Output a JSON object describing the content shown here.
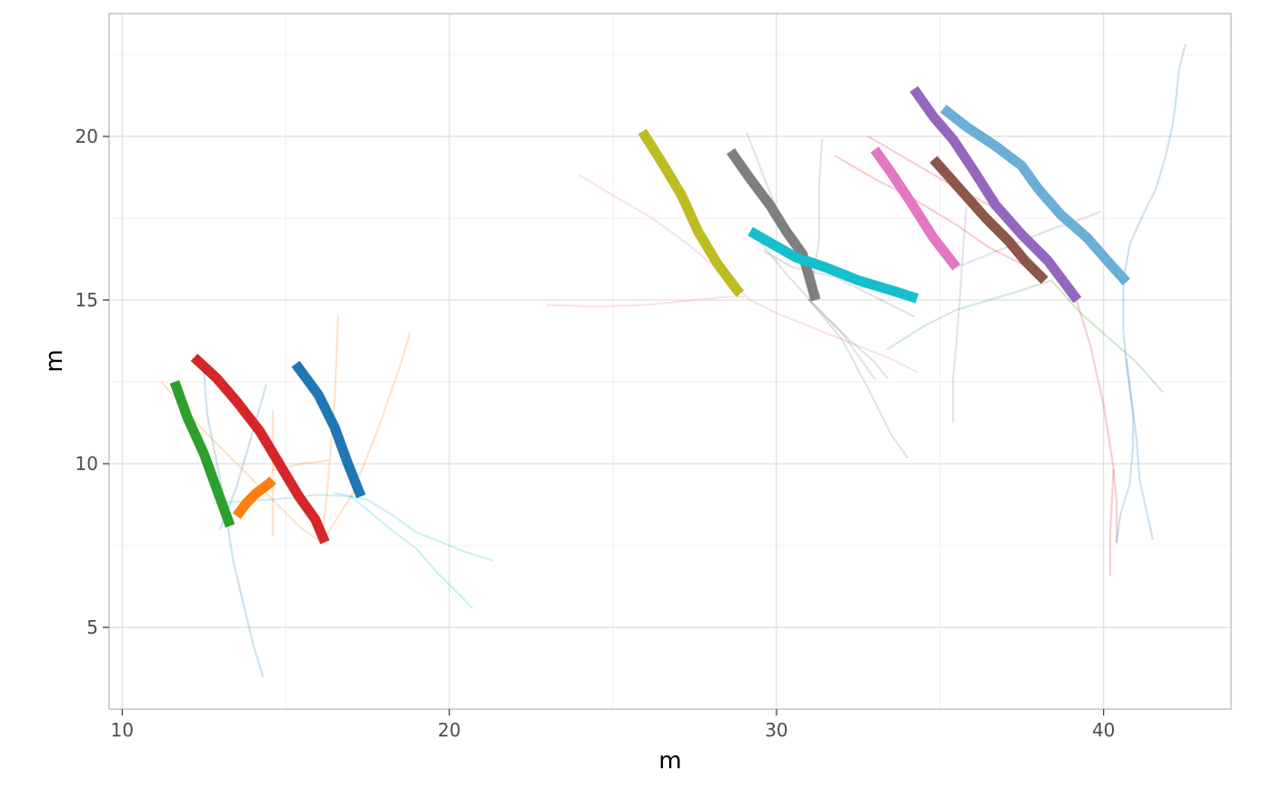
{
  "chart_data": {
    "type": "line",
    "title": "",
    "xlabel": "m",
    "ylabel": "m",
    "xlim": [
      9.6,
      43.9
    ],
    "ylim": [
      2.5,
      23.75
    ],
    "x_ticks": [
      10,
      20,
      30,
      40
    ],
    "y_ticks": [
      5,
      10,
      15,
      20
    ],
    "x_tick_labels": [
      "10",
      "20",
      "30",
      "40"
    ],
    "y_tick_labels": [
      "5",
      "10",
      "15",
      "20"
    ],
    "grid": true,
    "legend": "none",
    "background_series": [
      {
        "color": "#1f77b4",
        "points": [
          [
            12.5,
            12.8
          ],
          [
            12.6,
            11.5
          ],
          [
            13.0,
            9.5
          ],
          [
            13.4,
            7.0
          ],
          [
            14.0,
            4.5
          ],
          [
            14.3,
            3.5
          ]
        ]
      },
      {
        "color": "#1f77b4",
        "points": [
          [
            13.0,
            8.0
          ],
          [
            13.5,
            9.3
          ],
          [
            14.0,
            11.0
          ],
          [
            14.4,
            12.4
          ]
        ]
      },
      {
        "color": "#ff7f0e",
        "points": [
          [
            11.2,
            12.5
          ],
          [
            12.5,
            11.0
          ],
          [
            14.0,
            9.5
          ],
          [
            15.5,
            8.0
          ],
          [
            16.1,
            7.6
          ]
        ]
      },
      {
        "color": "#ff7f0e",
        "points": [
          [
            14.6,
            7.8
          ],
          [
            14.6,
            9.8
          ],
          [
            14.6,
            11.6
          ]
        ]
      },
      {
        "color": "#ff7f0e",
        "points": [
          [
            14.6,
            9.8
          ],
          [
            15.5,
            10.0
          ],
          [
            16.3,
            10.1
          ]
        ]
      },
      {
        "color": "#ff7f0e",
        "points": [
          [
            16.1,
            7.6
          ],
          [
            16.3,
            9.5
          ],
          [
            16.5,
            12.0
          ],
          [
            16.6,
            14.5
          ]
        ]
      },
      {
        "color": "#ff7f0e",
        "points": [
          [
            16.1,
            7.6
          ],
          [
            17.0,
            9.0
          ],
          [
            17.8,
            11.0
          ],
          [
            18.5,
            13.0
          ],
          [
            18.8,
            14.0
          ]
        ]
      },
      {
        "color": "#17becf",
        "points": [
          [
            12.8,
            8.8
          ],
          [
            14.5,
            8.9
          ],
          [
            16.0,
            9.05
          ],
          [
            17.0,
            9.0
          ]
        ]
      },
      {
        "color": "#17becf",
        "points": [
          [
            16.5,
            9.1
          ],
          [
            17.5,
            8.9
          ],
          [
            18.3,
            8.4
          ],
          [
            19.0,
            7.9
          ],
          [
            20.0,
            7.5
          ],
          [
            20.5,
            7.3
          ],
          [
            21.3,
            7.05
          ]
        ]
      },
      {
        "color": "#17becf",
        "points": [
          [
            17.0,
            9.0
          ],
          [
            18.2,
            8.0
          ],
          [
            19.0,
            7.4
          ],
          [
            19.6,
            6.7
          ],
          [
            20.2,
            6.1
          ],
          [
            20.7,
            5.6
          ]
        ]
      },
      {
        "color": "#e377c2",
        "points": [
          [
            23.0,
            14.85
          ],
          [
            24.5,
            14.8
          ],
          [
            26.0,
            14.85
          ],
          [
            27.5,
            15.0
          ],
          [
            28.5,
            15.1
          ],
          [
            29.0,
            15.1
          ]
        ]
      },
      {
        "color": "#e377c2",
        "points": [
          [
            24.0,
            18.8
          ],
          [
            25.0,
            18.2
          ],
          [
            26.2,
            17.5
          ],
          [
            27.3,
            16.7
          ],
          [
            28.5,
            15.7
          ],
          [
            29.2,
            15.0
          ],
          [
            30.0,
            14.6
          ],
          [
            31.0,
            14.2
          ],
          [
            32.5,
            13.6
          ],
          [
            33.5,
            13.2
          ],
          [
            34.3,
            12.8
          ]
        ]
      },
      {
        "color": "#7f7f7f",
        "points": [
          [
            29.1,
            20.1
          ],
          [
            29.6,
            18.8
          ],
          [
            30.2,
            17.3
          ],
          [
            30.8,
            16.2
          ],
          [
            31.2,
            15.2
          ]
        ]
      },
      {
        "color": "#7f7f7f",
        "points": [
          [
            31.0,
            15.0
          ],
          [
            31.3,
            16.8
          ],
          [
            31.3,
            18.5
          ],
          [
            31.4,
            19.9
          ]
        ]
      },
      {
        "color": "#7f7f7f",
        "points": [
          [
            29.4,
            16.9
          ],
          [
            30.3,
            15.8
          ],
          [
            31.2,
            14.8
          ],
          [
            32.0,
            14.0
          ],
          [
            33.0,
            12.6
          ]
        ]
      },
      {
        "color": "#7f7f7f",
        "points": [
          [
            29.6,
            16.5
          ],
          [
            30.5,
            16.0
          ],
          [
            31.8,
            15.7
          ],
          [
            33.0,
            15.1
          ],
          [
            34.2,
            14.5
          ]
        ]
      },
      {
        "color": "#7f7f7f",
        "points": [
          [
            31.0,
            15.0
          ],
          [
            32.0,
            14.0
          ],
          [
            33.0,
            13.1
          ],
          [
            33.4,
            12.6
          ]
        ]
      },
      {
        "color": "#7f7f7f",
        "points": [
          [
            31.0,
            15.0
          ],
          [
            32.0,
            13.8
          ],
          [
            32.8,
            12.3
          ],
          [
            33.5,
            10.9
          ],
          [
            34.0,
            10.2
          ]
        ]
      },
      {
        "color": "#d62728",
        "points": [
          [
            31.8,
            19.4
          ],
          [
            33.0,
            18.7
          ],
          [
            34.0,
            18.2
          ],
          [
            35.5,
            17.3
          ],
          [
            36.5,
            16.6
          ],
          [
            37.5,
            16.1
          ]
        ]
      },
      {
        "color": "#d62728",
        "points": [
          [
            32.8,
            20.0
          ],
          [
            34.0,
            19.3
          ],
          [
            35.2,
            18.6
          ],
          [
            36.5,
            17.9
          ],
          [
            37.5,
            17.0
          ],
          [
            38.5,
            16.1
          ],
          [
            39.2,
            14.9
          ],
          [
            39.6,
            13.6
          ],
          [
            40.0,
            11.8
          ],
          [
            40.3,
            9.9
          ],
          [
            40.4,
            8.8
          ],
          [
            40.4,
            7.6
          ]
        ]
      },
      {
        "color": "#d62728",
        "points": [
          [
            40.3,
            9.8
          ],
          [
            40.2,
            7.8
          ],
          [
            40.2,
            6.6
          ]
        ]
      },
      {
        "color": "#9467bd",
        "points": [
          [
            35.5,
            16.0
          ],
          [
            36.5,
            16.4
          ],
          [
            37.5,
            16.8
          ],
          [
            38.5,
            17.2
          ],
          [
            39.4,
            17.5
          ],
          [
            39.9,
            17.7
          ]
        ]
      },
      {
        "color": "#9467bd",
        "points": [
          [
            35.4,
            11.3
          ],
          [
            35.4,
            12.6
          ],
          [
            35.5,
            13.7
          ],
          [
            35.6,
            15.0
          ],
          [
            35.7,
            16.5
          ],
          [
            35.8,
            17.8
          ]
        ]
      },
      {
        "color": "#2ca02c",
        "points": [
          [
            33.4,
            13.5
          ],
          [
            34.5,
            14.2
          ],
          [
            35.5,
            14.7
          ],
          [
            36.5,
            15.0
          ],
          [
            37.5,
            15.3
          ],
          [
            38.4,
            15.6
          ],
          [
            39.3,
            14.6
          ],
          [
            40.2,
            13.8
          ],
          [
            41.0,
            13.1
          ],
          [
            41.8,
            12.2
          ]
        ]
      },
      {
        "color": "#1f77b4",
        "points": [
          [
            40.6,
            15.6
          ],
          [
            40.6,
            14.1
          ],
          [
            40.7,
            13.0
          ],
          [
            40.9,
            11.5
          ],
          [
            40.9,
            10.5
          ],
          [
            40.8,
            9.4
          ],
          [
            40.5,
            8.4
          ],
          [
            40.4,
            7.6
          ]
        ]
      },
      {
        "color": "#1f77b4",
        "points": [
          [
            40.7,
            13.2
          ],
          [
            41.0,
            10.8
          ],
          [
            41.1,
            9.5
          ],
          [
            41.5,
            7.7
          ]
        ]
      },
      {
        "color": "#1f77b4",
        "points": [
          [
            40.6,
            15.6
          ],
          [
            40.8,
            16.7
          ],
          [
            41.2,
            17.6
          ],
          [
            41.6,
            18.4
          ],
          [
            41.9,
            19.4
          ],
          [
            42.1,
            20.3
          ],
          [
            42.2,
            21.0
          ],
          [
            42.3,
            22.0
          ],
          [
            42.5,
            22.8
          ]
        ]
      }
    ],
    "highlighted_series": [
      {
        "color": "#1f77b4",
        "points": [
          [
            15.3,
            13.05
          ],
          [
            16.0,
            12.1
          ],
          [
            16.5,
            11.1
          ],
          [
            16.9,
            10.0
          ],
          [
            17.3,
            9.0
          ]
        ]
      },
      {
        "color": "#ff7f0e",
        "points": [
          [
            13.5,
            8.4
          ],
          [
            13.8,
            8.8
          ],
          [
            14.1,
            9.1
          ],
          [
            14.5,
            9.4
          ],
          [
            14.6,
            9.5
          ]
        ]
      },
      {
        "color": "#2ca02c",
        "points": [
          [
            11.6,
            12.5
          ],
          [
            12.0,
            11.4
          ],
          [
            12.5,
            10.3
          ],
          [
            12.9,
            9.2
          ],
          [
            13.3,
            8.1
          ]
        ]
      },
      {
        "color": "#d62728",
        "points": [
          [
            12.2,
            13.25
          ],
          [
            12.9,
            12.6
          ],
          [
            13.5,
            11.9
          ],
          [
            14.2,
            11.0
          ],
          [
            14.8,
            10.0
          ],
          [
            15.4,
            9.0
          ],
          [
            15.9,
            8.3
          ],
          [
            16.2,
            7.6
          ]
        ]
      },
      {
        "color": "#bcbd22",
        "points": [
          [
            25.9,
            20.15
          ],
          [
            26.5,
            19.2
          ],
          [
            27.1,
            18.2
          ],
          [
            27.6,
            17.1
          ],
          [
            28.2,
            16.1
          ],
          [
            28.8,
            15.3
          ],
          [
            28.9,
            15.2
          ]
        ]
      },
      {
        "color": "#7f7f7f",
        "points": [
          [
            28.6,
            19.55
          ],
          [
            29.2,
            18.7
          ],
          [
            29.8,
            17.9
          ],
          [
            30.3,
            17.1
          ],
          [
            30.8,
            16.4
          ],
          [
            31.0,
            15.7
          ],
          [
            31.2,
            15.0
          ]
        ]
      },
      {
        "color": "#17becf",
        "points": [
          [
            29.2,
            17.1
          ],
          [
            29.9,
            16.7
          ],
          [
            30.6,
            16.3
          ],
          [
            31.5,
            16.0
          ],
          [
            32.5,
            15.6
          ],
          [
            33.5,
            15.3
          ],
          [
            34.3,
            15.05
          ]
        ]
      },
      {
        "color": "#e377c2",
        "points": [
          [
            33.0,
            19.6
          ],
          [
            33.5,
            18.9
          ],
          [
            34.1,
            18.0
          ],
          [
            34.8,
            16.9
          ],
          [
            35.5,
            16.0
          ]
        ]
      },
      {
        "color": "#9467bd",
        "points": [
          [
            34.2,
            21.45
          ],
          [
            34.8,
            20.6
          ],
          [
            35.4,
            19.9
          ],
          [
            36.0,
            19.0
          ],
          [
            36.7,
            17.9
          ],
          [
            37.5,
            17.0
          ],
          [
            38.3,
            16.2
          ],
          [
            39.2,
            15.0
          ]
        ]
      },
      {
        "color": "#8c564b",
        "points": [
          [
            34.8,
            19.3
          ],
          [
            35.6,
            18.4
          ],
          [
            36.4,
            17.5
          ],
          [
            37.1,
            16.8
          ],
          [
            37.6,
            16.2
          ],
          [
            38.2,
            15.6
          ]
        ]
      },
      {
        "color": "#6baed6",
        "points": [
          [
            35.1,
            20.85
          ],
          [
            35.8,
            20.3
          ],
          [
            36.7,
            19.7
          ],
          [
            37.5,
            19.1
          ],
          [
            38.0,
            18.4
          ],
          [
            38.7,
            17.6
          ],
          [
            39.5,
            16.9
          ],
          [
            40.2,
            16.1
          ],
          [
            40.7,
            15.55
          ]
        ]
      }
    ]
  }
}
